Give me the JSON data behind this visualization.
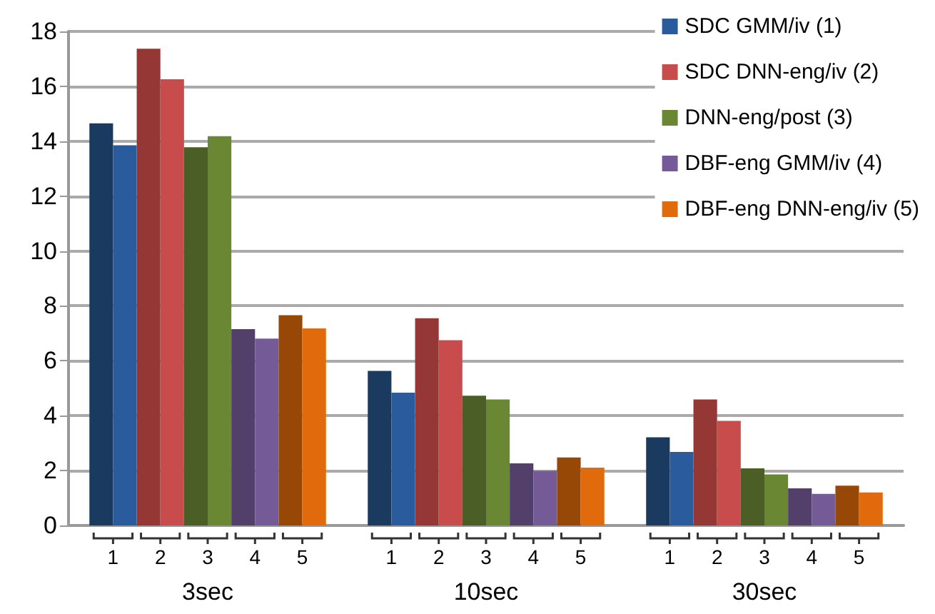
{
  "chart_data": {
    "type": "bar",
    "categories": [
      "3sec",
      "10sec",
      "30sec"
    ],
    "series": [
      {
        "color": "#1b3a60",
        "values": [
          14.65,
          5.63,
          3.21
        ]
      },
      {
        "name": "SDC GMM/iv (1)",
        "color": "#2a5b9c",
        "values": [
          13.85,
          4.84,
          2.68
        ]
      },
      {
        "color": "#953735",
        "values": [
          17.37,
          7.55,
          4.59
        ]
      },
      {
        "name": "SDC DNN-eng/iv (2)",
        "color": "#c94c4c",
        "values": [
          16.26,
          6.75,
          3.81
        ]
      },
      {
        "color": "#4b5e26",
        "values": [
          13.78,
          4.73,
          2.08
        ]
      },
      {
        "name": "DNN-eng/post (3)",
        "color": "#6a8734",
        "values": [
          14.18,
          4.59,
          1.86
        ]
      },
      {
        "color": "#523f6a",
        "values": [
          7.15,
          2.26,
          1.35
        ]
      },
      {
        "name": "DBF-eng GMM/iv (4)",
        "color": "#745a96",
        "values": [
          6.81,
          1.99,
          1.15
        ]
      },
      {
        "color": "#974806",
        "values": [
          7.66,
          2.48,
          1.45
        ]
      },
      {
        "name": "DBF-eng DNN-eng/iv (5)",
        "color": "#e06a0c",
        "values": [
          7.18,
          2.11,
          1.2
        ]
      }
    ],
    "ylim": [
      0,
      18
    ],
    "yticks": [
      0,
      2,
      4,
      6,
      8,
      10,
      12,
      14,
      16,
      18
    ],
    "grid": "y",
    "legend": "top right",
    "annotations": [
      "1",
      "2",
      "3",
      "4",
      "5",
      "1",
      "2",
      "3",
      "4",
      "5",
      "1",
      "2",
      "3",
      "4",
      "5"
    ]
  }
}
